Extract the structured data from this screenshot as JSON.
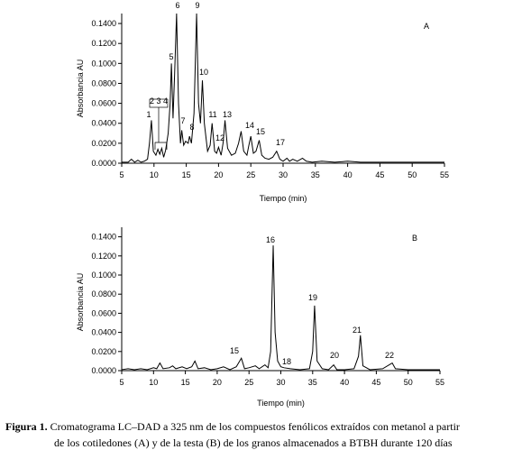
{
  "chart_data": [
    {
      "type": "line",
      "label": "A",
      "xlabel": "Tiempo (min)",
      "ylabel": "Absorbancia AU",
      "xlim": [
        5,
        55
      ],
      "xticks": [
        5,
        10,
        15,
        20,
        25,
        30,
        35,
        40,
        45,
        50,
        55
      ],
      "ylim": [
        0,
        0.15
      ],
      "yticks": [
        {
          "value": 0,
          "label": "0.0000"
        },
        {
          "value": 0.02,
          "label": "0.0200"
        },
        {
          "value": 0.04,
          "label": "0.0400"
        },
        {
          "value": 0.06,
          "label": "0.0600"
        },
        {
          "value": 0.08,
          "label": "0.0800"
        },
        {
          "value": 0.1,
          "label": "0.1000"
        },
        {
          "value": 0.12,
          "label": "0.1200"
        },
        {
          "value": 0.14,
          "label": "0.1400"
        }
      ],
      "annotations": [
        "1",
        "2 3 4",
        "5",
        "6",
        "9",
        "7",
        "8",
        "10",
        "11",
        "12",
        "13",
        "14",
        "15",
        "17"
      ],
      "series": [
        {
          "color": "#000000",
          "x": [
            5,
            6,
            6.5,
            7,
            7.5,
            8,
            8.5,
            9,
            9.3,
            9.6,
            9.9,
            10.3,
            10.6,
            10.9,
            11.2,
            11.5,
            11.8,
            12.2,
            12.5,
            12.7,
            12.95,
            13.2,
            13.5,
            13.8,
            14.1,
            14.3,
            14.6,
            14.9,
            15.3,
            15.5,
            15.8,
            16.2,
            16.6,
            16.9,
            17.2,
            17.5,
            17.8,
            18.3,
            18.7,
            19,
            19.4,
            19.7,
            20,
            20.4,
            20.7,
            21,
            21.4,
            22,
            22.6,
            23.1,
            23.5,
            23.9,
            24.4,
            24.7,
            25,
            25.4,
            25.8,
            26.3,
            26.7,
            27.2,
            27.8,
            28.4,
            29,
            29.5,
            30,
            30.6,
            31,
            31.5,
            32.2,
            33,
            33.6,
            34.5,
            36,
            38,
            40,
            42,
            45,
            50,
            55
          ],
          "values": [
            0.001,
            0.001,
            0.004,
            0.001,
            0.003,
            0.001,
            0.002,
            0.004,
            0.02,
            0.043,
            0.012,
            0.008,
            0.014,
            0.009,
            0.015,
            0.006,
            0.013,
            0.03,
            0.06,
            0.1,
            0.045,
            0.09,
            0.15,
            0.06,
            0.02,
            0.033,
            0.018,
            0.022,
            0.02,
            0.027,
            0.02,
            0.05,
            0.15,
            0.06,
            0.04,
            0.083,
            0.04,
            0.012,
            0.018,
            0.04,
            0.012,
            0.01,
            0.016,
            0.008,
            0.02,
            0.043,
            0.015,
            0.008,
            0.01,
            0.02,
            0.032,
            0.012,
            0.008,
            0.018,
            0.027,
            0.01,
            0.012,
            0.023,
            0.008,
            0.005,
            0.004,
            0.006,
            0.012,
            0.004,
            0.002,
            0.005,
            0.002,
            0.004,
            0.002,
            0.005,
            0.002,
            0.001,
            0.002,
            0.001,
            0.002,
            0.001,
            0.001,
            0.001,
            0.001
          ]
        }
      ]
    },
    {
      "type": "line",
      "label": "B",
      "xlabel": "Tiempo (min)",
      "ylabel": "Absorbancia AU",
      "xlim": [
        5,
        55
      ],
      "xticks": [
        5,
        10,
        15,
        20,
        25,
        30,
        35,
        40,
        45,
        50,
        55
      ],
      "ylim": [
        0,
        0.15
      ],
      "yticks": [
        {
          "value": 0,
          "label": "0.0000"
        },
        {
          "value": 0.02,
          "label": "0.0200"
        },
        {
          "value": 0.04,
          "label": "0.0400"
        },
        {
          "value": 0.06,
          "label": "0.0600"
        },
        {
          "value": 0.08,
          "label": "0.0800"
        },
        {
          "value": 0.1,
          "label": "0.1000"
        },
        {
          "value": 0.12,
          "label": "0.1200"
        },
        {
          "value": 0.14,
          "label": "0.1400"
        }
      ],
      "annotations": [
        "16",
        "15",
        "18",
        "19",
        "20",
        "21",
        "22"
      ],
      "series": [
        {
          "color": "#000000",
          "x": [
            5,
            6,
            7,
            8,
            9,
            10,
            10.5,
            11,
            11.5,
            12.5,
            13,
            13.5,
            14.5,
            15.2,
            16,
            16.5,
            17,
            18,
            19,
            20,
            21,
            22,
            23,
            23.8,
            24.3,
            25,
            26,
            26.6,
            27.5,
            28,
            28.4,
            28.8,
            29.1,
            29.5,
            30,
            30.5,
            31.5,
            33,
            34.5,
            35,
            35.3,
            35.7,
            36.5,
            37.5,
            38.3,
            38.8,
            40,
            41.5,
            42.2,
            42.5,
            42.9,
            44,
            46,
            47.5,
            48,
            50,
            52,
            55
          ],
          "values": [
            0.001,
            0.002,
            0.001,
            0.002,
            0.001,
            0.003,
            0.002,
            0.008,
            0.002,
            0.003,
            0.005,
            0.002,
            0.004,
            0.002,
            0.004,
            0.01,
            0.002,
            0.003,
            0.001,
            0.002,
            0.004,
            0.001,
            0.004,
            0.013,
            0.002,
            0.003,
            0.005,
            0.002,
            0.006,
            0.003,
            0.02,
            0.131,
            0.04,
            0.01,
            0.004,
            0.003,
            0.002,
            0.001,
            0.002,
            0.02,
            0.068,
            0.01,
            0.002,
            0.001,
            0.006,
            0.001,
            0.001,
            0.002,
            0.015,
            0.037,
            0.005,
            0.001,
            0.002,
            0.008,
            0.002,
            0.001,
            0.001,
            0.001
          ]
        }
      ]
    }
  ],
  "caption": {
    "label": "Figura 1.",
    "line1": "Cromatograma LC–DAD a 325 nm de los compuestos fenólicos extraídos con metanol a partir",
    "line2": "de los cotiledones (A) y de la testa (B) de los granos almacenados a BTBH durante 120 días"
  }
}
